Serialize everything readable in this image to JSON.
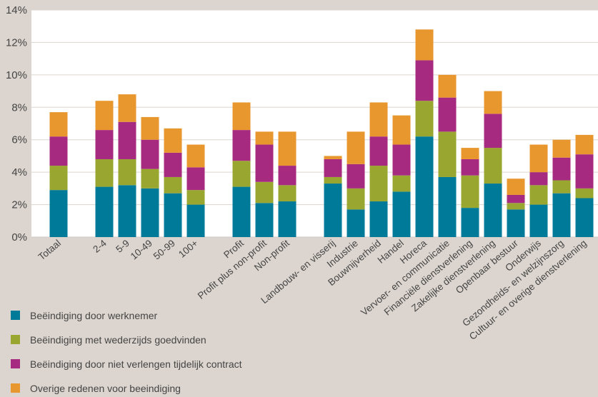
{
  "chart_data": {
    "type": "bar",
    "stacked": true,
    "title": "",
    "xlabel": "",
    "ylabel": "",
    "ylim": [
      0,
      14
    ],
    "y_ticks": [
      "0%",
      "2%",
      "4%",
      "6%",
      "8%",
      "10%",
      "12%",
      "14%"
    ],
    "grid": true,
    "legend_position": "bottom-left",
    "categories": [
      "Totaal",
      "2-4",
      "5-9",
      "10-49",
      "50-99",
      "100+",
      "Profit",
      "Profit plus non-profit",
      "Non-profit",
      "Landbouw- en visserij",
      "Industrie",
      "Bouwnijverheid",
      "Handel",
      "Horeca",
      "Vervoer- en communicatie",
      "Financiële dienstverlening",
      "Zakelijke dienstverlening",
      "Openbaar bestuur",
      "Onderwijs",
      "Gezondheids- en welzijnszorg",
      "Cultuur- en overige dienstverlening"
    ],
    "groups": [
      1,
      5,
      3,
      12
    ],
    "series": [
      {
        "name": "Beëindiging door werknemer",
        "color": "#007a99",
        "values": [
          2.9,
          3.1,
          3.2,
          3.0,
          2.7,
          2.0,
          3.1,
          2.1,
          2.2,
          3.3,
          1.7,
          2.2,
          2.8,
          6.2,
          3.7,
          1.8,
          3.3,
          1.7,
          2.0,
          2.7,
          2.4
        ]
      },
      {
        "name": "Beëindiging met wederzijds goedvinden",
        "color": "#99a630",
        "values": [
          1.5,
          1.7,
          1.6,
          1.2,
          1.0,
          0.9,
          1.6,
          1.3,
          1.0,
          0.4,
          1.3,
          2.2,
          1.0,
          2.2,
          2.8,
          2.0,
          2.2,
          0.4,
          1.2,
          0.8,
          0.6
        ]
      },
      {
        "name": "Beëindiging door niet verlengen tijdelijk contract",
        "color": "#a62b80",
        "values": [
          1.8,
          1.8,
          2.3,
          1.8,
          1.5,
          1.4,
          1.9,
          2.3,
          1.2,
          1.1,
          1.5,
          1.8,
          1.9,
          2.5,
          2.1,
          1.0,
          2.1,
          0.5,
          0.8,
          1.4,
          2.1
        ]
      },
      {
        "name": "Overige redenen voor beeindiging",
        "color": "#e8972e",
        "values": [
          1.5,
          1.8,
          1.7,
          1.4,
          1.5,
          1.4,
          1.7,
          0.8,
          2.1,
          0.2,
          2.0,
          2.1,
          1.8,
          1.9,
          1.4,
          0.7,
          1.4,
          1.0,
          1.7,
          1.1,
          1.2
        ]
      }
    ]
  }
}
